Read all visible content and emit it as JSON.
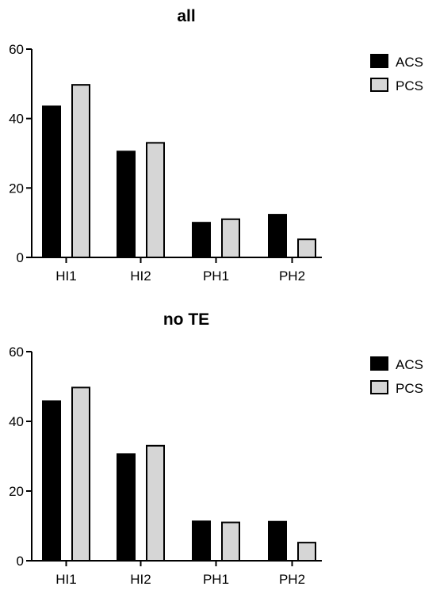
{
  "chart_data": [
    {
      "type": "bar",
      "title": "all",
      "categories": [
        "HI1",
        "HI2",
        "PH1",
        "PH2"
      ],
      "series": [
        {
          "name": "ACS",
          "values": [
            43.5,
            30.5,
            10,
            12.3
          ]
        },
        {
          "name": "PCS",
          "values": [
            49.7,
            33,
            11,
            5.2
          ]
        }
      ],
      "ylim": [
        0,
        60
      ],
      "yticks": [
        "0",
        "20",
        "40",
        "60"
      ],
      "xlabel": "",
      "ylabel": "",
      "grid": false,
      "legend": "top-right"
    },
    {
      "type": "bar",
      "title": "no TE",
      "categories": [
        "HI1",
        "HI2",
        "PH1",
        "PH2"
      ],
      "series": [
        {
          "name": "ACS",
          "values": [
            45.8,
            30.6,
            11.3,
            11.2
          ]
        },
        {
          "name": "PCS",
          "values": [
            49.7,
            33,
            11,
            5.2
          ]
        }
      ],
      "ylim": [
        0,
        60
      ],
      "yticks": [
        "0",
        "20",
        "40",
        "60"
      ],
      "xlabel": "",
      "ylabel": "",
      "grid": false,
      "legend": "top-right"
    }
  ],
  "colors": {
    "ACS": "#000000",
    "PCS": "#d6d6d6",
    "edge": "#000000"
  }
}
